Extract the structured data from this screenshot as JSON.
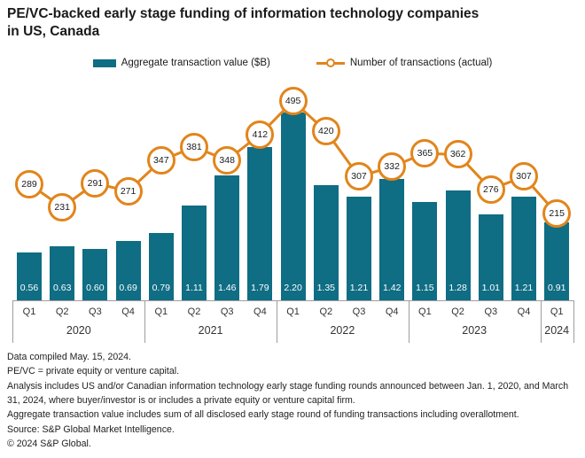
{
  "title": {
    "line1": "PE/VC-backed early stage funding of information technology companies",
    "line2": "in US, Canada"
  },
  "legend": {
    "bar_label": "Aggregate transaction value ($B)",
    "line_label": "Number of transactions (actual)"
  },
  "colors": {
    "bar": "#0f6d84",
    "line": "#e2851b",
    "axis": "#9e9e9e",
    "text": "#1a1a1a"
  },
  "chart_data": {
    "type": "bar",
    "title": "PE/VC-backed early stage funding of information technology companies in US, Canada",
    "categories": [
      "Q1 2020",
      "Q2 2020",
      "Q3 2020",
      "Q4 2020",
      "Q1 2021",
      "Q2 2021",
      "Q3 2021",
      "Q4 2021",
      "Q1 2022",
      "Q2 2022",
      "Q3 2022",
      "Q4 2022",
      "Q1 2023",
      "Q2 2023",
      "Q3 2023",
      "Q4 2023",
      "Q1 2024"
    ],
    "groups": [
      {
        "year": "2020",
        "quarters": [
          "Q1",
          "Q2",
          "Q3",
          "Q4"
        ]
      },
      {
        "year": "2021",
        "quarters": [
          "Q1",
          "Q2",
          "Q3",
          "Q4"
        ]
      },
      {
        "year": "2022",
        "quarters": [
          "Q1",
          "Q2",
          "Q3",
          "Q4"
        ]
      },
      {
        "year": "2023",
        "quarters": [
          "Q1",
          "Q2",
          "Q3",
          "Q4"
        ]
      },
      {
        "year": "2024",
        "quarters": [
          "Q1"
        ]
      }
    ],
    "series": [
      {
        "name": "Aggregate transaction value ($B)",
        "type": "bar",
        "values": [
          0.56,
          0.63,
          0.6,
          0.69,
          0.79,
          1.11,
          1.46,
          1.79,
          2.2,
          1.35,
          1.21,
          1.42,
          1.15,
          1.28,
          1.01,
          1.21,
          0.91
        ],
        "labels": [
          "0.56",
          "0.63",
          "0.60",
          "0.69",
          "0.79",
          "1.11",
          "1.46",
          "1.79",
          "2.20",
          "1.35",
          "1.21",
          "1.42",
          "1.15",
          "1.28",
          "1.01",
          "1.21",
          "0.91"
        ]
      },
      {
        "name": "Number of transactions (actual)",
        "type": "line",
        "values": [
          289,
          231,
          291,
          271,
          347,
          381,
          348,
          412,
          495,
          420,
          307,
          332,
          365,
          362,
          276,
          307,
          215
        ],
        "labels": [
          "289",
          "231",
          "291",
          "271",
          "347",
          "381",
          "348",
          "412",
          "495",
          "420",
          "307",
          "332",
          "365",
          "362",
          "276",
          "307",
          "215"
        ]
      }
    ],
    "value_labels_shown": true,
    "legend_position": "top",
    "y_axes_hidden": true,
    "grid": false
  },
  "footer": {
    "lines": [
      "Data compiled May. 15, 2024.",
      "PE/VC = private equity or venture capital.",
      "Analysis includes US and/or Canadian information technology early stage funding rounds announced between Jan. 1, 2020, and March 31, 2024, where buyer/investor is or includes a private equity or venture capital firm.",
      "Aggregate transaction value includes sum of all disclosed early stage round of funding transactions including overallotment.",
      "Source: S&P Global Market Intelligence.",
      "© 2024 S&P Global."
    ]
  }
}
